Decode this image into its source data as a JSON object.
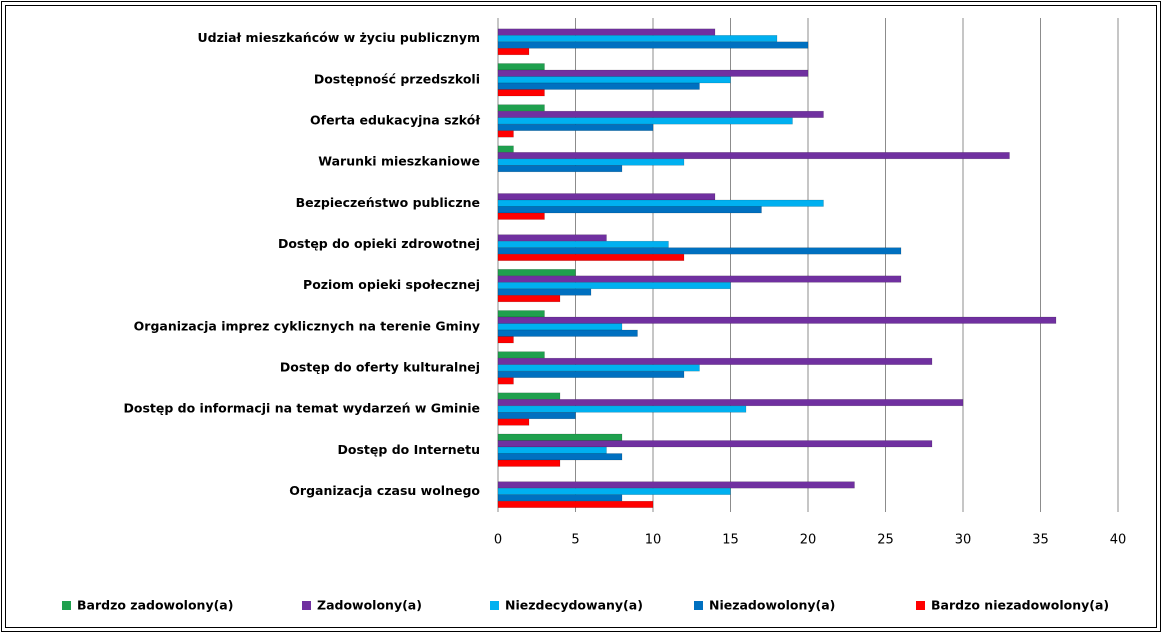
{
  "chart_data": {
    "type": "bar",
    "orientation": "horizontal",
    "categories": [
      "Udział mieszkańców w życiu publicznym",
      "Dostępność przedszkoli",
      "Oferta edukacyjna szkół",
      "Warunki mieszkaniowe",
      "Bezpieczeństwo publiczne",
      "Dostęp do opieki zdrowotnej",
      "Poziom opieki społecznej",
      "Organizacja imprez cyklicznych na terenie Gminy",
      "Dostęp do oferty kulturalnej",
      "Dostęp do informacji na temat wydarzeń w Gminie",
      "Dostęp do Internetu",
      "Organizacja czasu wolnego"
    ],
    "series": [
      {
        "name": "Bardzo zadowolony(a)",
        "color": "#1fa04e",
        "values": [
          0,
          3,
          3,
          1,
          0,
          0,
          5,
          3,
          3,
          4,
          8,
          0
        ]
      },
      {
        "name": "Zadowolony(a)",
        "color": "#7030a0",
        "values": [
          14,
          20,
          21,
          33,
          14,
          7,
          26,
          36,
          28,
          30,
          28,
          23
        ]
      },
      {
        "name": "Niezdecydowany(a)",
        "color": "#00b0f0",
        "values": [
          18,
          15,
          19,
          12,
          21,
          11,
          15,
          8,
          13,
          16,
          7,
          15
        ]
      },
      {
        "name": "Niezadowolony(a)",
        "color": "#0070c0",
        "values": [
          20,
          13,
          10,
          8,
          17,
          26,
          6,
          9,
          12,
          5,
          8,
          8
        ]
      },
      {
        "name": "Bardzo niezadowolony(a)",
        "color": "#ff0000",
        "values": [
          2,
          3,
          1,
          0,
          3,
          12,
          4,
          1,
          1,
          2,
          4,
          10
        ]
      }
    ],
    "xlim": [
      0,
      40
    ],
    "xticks": [
      0,
      5,
      10,
      15,
      20,
      25,
      30,
      35,
      40
    ],
    "grid": true,
    "legend": "bottom"
  }
}
